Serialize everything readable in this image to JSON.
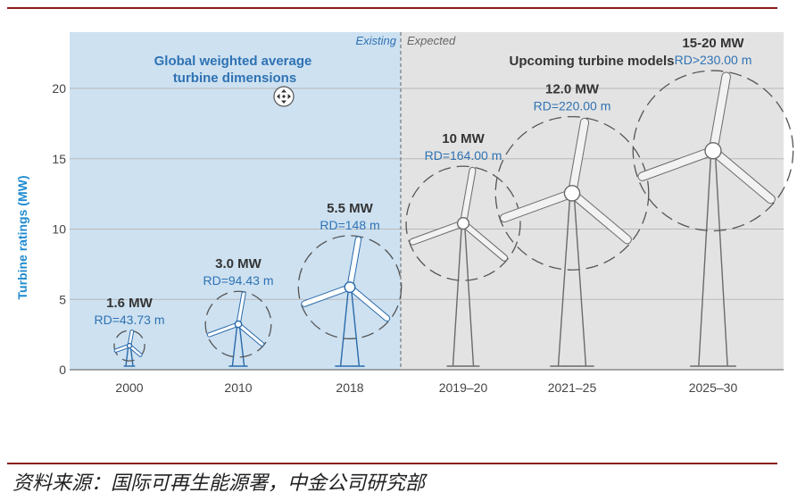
{
  "chart_data": {
    "type": "bar",
    "ylabel": "Turbine ratings (MW)",
    "ylim": [
      0,
      24
    ],
    "yticks": [
      0,
      5,
      10,
      15,
      20
    ],
    "grid": true,
    "sections": {
      "existing": {
        "tag": "Existing",
        "title_line1": "Global weighted average",
        "title_line2": "turbine dimensions"
      },
      "expected": {
        "tag": "Expected",
        "title": "Upcoming turbine models"
      }
    },
    "categories": [
      "2000",
      "2010",
      "2018",
      "2019–20",
      "2021–25",
      "2025–30"
    ],
    "items": [
      {
        "year": "2000",
        "mw": 1.6,
        "mw_label": "1.6 MW",
        "rd": 43.73,
        "rd_label": "RD=43.73 m",
        "group": "existing"
      },
      {
        "year": "2010",
        "mw": 3.0,
        "mw_label": "3.0 MW",
        "rd": 94.43,
        "rd_label": "RD=94.43 m",
        "group": "existing"
      },
      {
        "year": "2018",
        "mw": 5.5,
        "mw_label": "5.5 MW",
        "rd": 148,
        "rd_label": "RD=148 m",
        "group": "existing"
      },
      {
        "year": "2019–20",
        "mw": 10,
        "mw_label": "10 MW",
        "rd": 164.0,
        "rd_label": "RD=164.00 m",
        "group": "expected"
      },
      {
        "year": "2021–25",
        "mw": 12.0,
        "mw_label": "12.0 MW",
        "rd": 220.0,
        "rd_label": "RD=220.00 m",
        "group": "expected"
      },
      {
        "year": "2025–30",
        "mw": "15-20",
        "mw_label": "15-20 MW",
        "rd": 230.0,
        "rd_label": "RD>230.00 m",
        "group": "expected"
      }
    ]
  },
  "colors": {
    "existing_bg": "#cde1f1",
    "expected_bg": "#e3e3e3",
    "blue_text": "#2f72b3",
    "ylabel": "#1f8bd0",
    "turbine_existing": "#2a6aaa",
    "turbine_expected": "#6a6a6a",
    "rule": "#8b1a1a"
  },
  "source": "资料来源：国际可再生能源署，中金公司研究部",
  "icons": {
    "move_cursor": "move-cursor-icon"
  }
}
